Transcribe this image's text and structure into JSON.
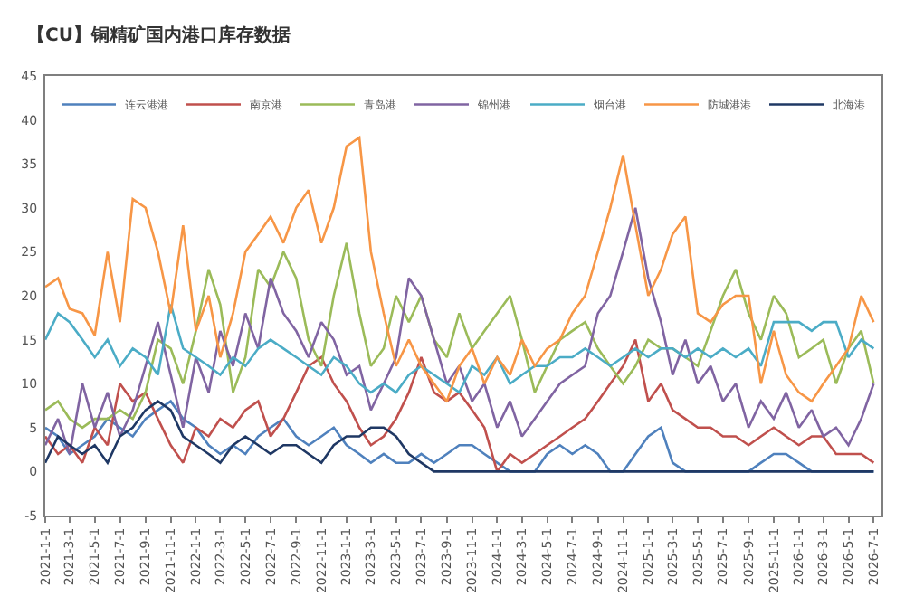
{
  "chart_data": {
    "type": "line",
    "title": "【CU】铜精矿国内港口库存数据",
    "x": [
      "2021-01",
      "2021-02",
      "2021-03",
      "2021-04",
      "2021-05",
      "2021-06",
      "2021-07",
      "2021-08",
      "2021-09",
      "2021-10",
      "2021-11",
      "2021-12",
      "2022-01",
      "2022-02",
      "2022-03",
      "2022-04",
      "2022-05",
      "2022-06",
      "2022-07",
      "2022-08",
      "2022-09",
      "2022-10",
      "2022-11",
      "2022-12",
      "2023-01",
      "2023-02",
      "2023-03",
      "2023-04",
      "2023-05",
      "2023-06",
      "2023-07",
      "2023-08",
      "2023-09",
      "2023-10",
      "2023-11",
      "2023-12",
      "2024-01",
      "2024-02",
      "2024-03",
      "2024-04",
      "2024-05",
      "2024-06",
      "2024-07",
      "2024-08",
      "2024-09",
      "2024-10",
      "2024-11",
      "2024-12",
      "2025-01",
      "2025-02",
      "2025-03",
      "2025-04",
      "2025-05",
      "2025-06",
      "2025-07",
      "2025-08",
      "2025-09",
      "2025-10",
      "2025-11",
      "2025-12",
      "2026-01",
      "2026-02",
      "2026-03",
      "2026-04",
      "2026-05",
      "2026-06",
      "2026-07"
    ],
    "series": [
      {
        "name": "连云港港",
        "color": "#4f81bd",
        "values": [
          5,
          4,
          2,
          3,
          4,
          6,
          5,
          4,
          6,
          7,
          8,
          6,
          5,
          3,
          2,
          3,
          2,
          4,
          5,
          6,
          4,
          3,
          4,
          5,
          3,
          2,
          1,
          2,
          1,
          1,
          2,
          1,
          2,
          3,
          3,
          2,
          1,
          0,
          0,
          0,
          2,
          3,
          2,
          3,
          2,
          0,
          0,
          2,
          4,
          5,
          1,
          0,
          0,
          0,
          0,
          0,
          0,
          1,
          2,
          2,
          1,
          0,
          0,
          0,
          0,
          0,
          0
        ]
      },
      {
        "name": "南京港",
        "color": "#c0504d",
        "values": [
          4,
          2,
          3,
          1,
          5,
          3,
          10,
          8,
          9,
          6,
          3,
          1,
          5,
          4,
          6,
          5,
          7,
          8,
          4,
          6,
          9,
          12,
          13,
          10,
          8,
          5,
          3,
          4,
          6,
          9,
          13,
          9,
          8,
          9,
          7,
          5,
          0,
          2,
          1,
          2,
          3,
          4,
          5,
          6,
          8,
          10,
          12,
          15,
          8,
          10,
          7,
          6,
          5,
          5,
          4,
          4,
          3,
          4,
          5,
          4,
          3,
          4,
          4,
          2,
          2,
          2,
          1
        ]
      },
      {
        "name": "青岛港",
        "color": "#9bbb59",
        "values": [
          7,
          8,
          6,
          5,
          6,
          6,
          7,
          6,
          9,
          15,
          14,
          10,
          16,
          23,
          19,
          9,
          13,
          23,
          21,
          25,
          22,
          15,
          12,
          20,
          26,
          18,
          12,
          14,
          20,
          17,
          20,
          15,
          13,
          18,
          14,
          16,
          18,
          20,
          15,
          9,
          12,
          15,
          16,
          17,
          14,
          12,
          10,
          12,
          15,
          14,
          14,
          13,
          12,
          16,
          20,
          23,
          18,
          15,
          20,
          18,
          13,
          14,
          15,
          10,
          14,
          16,
          10
        ]
      },
      {
        "name": "锦州港",
        "color": "#8064a2",
        "values": [
          3,
          6,
          2,
          10,
          5,
          9,
          4,
          7,
          12,
          17,
          11,
          5,
          13,
          9,
          16,
          12,
          18,
          14,
          22,
          18,
          16,
          13,
          17,
          15,
          11,
          12,
          7,
          10,
          13,
          22,
          20,
          15,
          10,
          12,
          8,
          10,
          5,
          8,
          4,
          6,
          8,
          10,
          11,
          12,
          18,
          20,
          25,
          30,
          22,
          17,
          11,
          15,
          10,
          12,
          8,
          10,
          5,
          8,
          6,
          9,
          5,
          7,
          4,
          5,
          3,
          6,
          10
        ]
      },
      {
        "name": "烟台港",
        "color": "#4bacc6",
        "values": [
          15,
          18,
          17,
          15,
          13,
          15,
          12,
          14,
          13,
          11,
          19,
          14,
          13,
          12,
          11,
          13,
          12,
          14,
          15,
          14,
          13,
          12,
          11,
          13,
          12,
          10,
          9,
          10,
          9,
          11,
          12,
          11,
          10,
          9,
          12,
          11,
          13,
          10,
          11,
          12,
          12,
          13,
          13,
          14,
          13,
          12,
          13,
          14,
          13,
          14,
          14,
          13,
          14,
          13,
          14,
          13,
          14,
          12,
          17,
          17,
          17,
          16,
          17,
          17,
          13,
          15,
          14
        ]
      },
      {
        "name": "防城港港",
        "color": "#f79646",
        "values": [
          21,
          22,
          18.5,
          18,
          15.5,
          25,
          17,
          31,
          30,
          25,
          18,
          28,
          16,
          20,
          13,
          18,
          25,
          27,
          29,
          26,
          30,
          32,
          26,
          30,
          37,
          38,
          25,
          18,
          12,
          15,
          12,
          10,
          8,
          12,
          14,
          10,
          13,
          11,
          15,
          12,
          14,
          15,
          18,
          20,
          25,
          30,
          36,
          28,
          20,
          23,
          27,
          29,
          18,
          17,
          19,
          20,
          20,
          10,
          16,
          11,
          9,
          8,
          10,
          12,
          14,
          20,
          17
        ]
      },
      {
        "name": "北海港",
        "color": "#1f3864",
        "values": [
          1,
          4,
          3,
          2,
          3,
          1,
          4,
          5,
          7,
          8,
          7,
          4,
          3,
          2,
          1,
          3,
          4,
          3,
          2,
          3,
          3,
          2,
          1,
          3,
          4,
          4,
          5,
          5,
          4,
          2,
          1,
          0,
          0,
          0,
          0,
          0,
          0,
          0,
          0,
          0,
          0,
          0,
          0,
          0,
          0,
          0,
          0,
          0,
          0,
          0,
          0,
          0,
          0,
          0,
          0,
          0,
          0,
          0,
          0,
          0,
          0,
          0,
          0,
          0,
          0,
          0,
          0
        ]
      }
    ],
    "xlim": [
      "2021-01-01",
      "2026-07-20"
    ],
    "xticks": [
      {
        "value": "2021-01-01",
        "label": "2021-1-1"
      },
      {
        "value": "2021-03-01",
        "label": "2021-3-1"
      },
      {
        "value": "2021-05-01",
        "label": "2021-5-1"
      },
      {
        "value": "2021-07-01",
        "label": "2021-7-1"
      },
      {
        "value": "2021-09-01",
        "label": "2021-9-1"
      },
      {
        "value": "2021-11-01",
        "label": "2021-11-1"
      },
      {
        "value": "2022-01-01",
        "label": "2022-1-1"
      },
      {
        "value": "2022-03-01",
        "label": "2022-3-1"
      },
      {
        "value": "2022-05-01",
        "label": "2022-5-1"
      },
      {
        "value": "2022-07-01",
        "label": "2022-7-1"
      },
      {
        "value": "2022-09-01",
        "label": "2022-9-1"
      },
      {
        "value": "2022-11-01",
        "label": "2022-11-1"
      },
      {
        "value": "2023-01-01",
        "label": "2023-1-1"
      },
      {
        "value": "2023-03-01",
        "label": "2023-3-1"
      },
      {
        "value": "2023-05-01",
        "label": "2023-5-1"
      },
      {
        "value": "2023-07-01",
        "label": "2023-7-1"
      },
      {
        "value": "2023-09-01",
        "label": "2023-9-1"
      },
      {
        "value": "2023-11-01",
        "label": "2023-11-1"
      },
      {
        "value": "2024-01-01",
        "label": "2024-1-1"
      },
      {
        "value": "2024-03-01",
        "label": "2024-3-1"
      },
      {
        "value": "2024-05-01",
        "label": "2024-5-1"
      },
      {
        "value": "2024-07-01",
        "label": "2024-7-1"
      },
      {
        "value": "2024-09-01",
        "label": "2024-9-1"
      },
      {
        "value": "2024-11-01",
        "label": "2024-11-1"
      },
      {
        "value": "2025-01-01",
        "label": "2025-1-1"
      },
      {
        "value": "2025-03-01",
        "label": "2025-3-1"
      },
      {
        "value": "2025-05-01",
        "label": "2025-5-1"
      },
      {
        "value": "2025-07-01",
        "label": "2025-7-1"
      },
      {
        "value": "2025-09-01",
        "label": "2025-9-1"
      },
      {
        "value": "2025-11-01",
        "label": "2025-11-1"
      },
      {
        "value": "2026-01-01",
        "label": "2026-1-1"
      },
      {
        "value": "2026-03-01",
        "label": "2026-3-1"
      },
      {
        "value": "2026-05-01",
        "label": "2026-5-1"
      },
      {
        "value": "2026-07-01",
        "label": "2026-7-1"
      }
    ],
    "ylim": [
      -5,
      45
    ],
    "yticks": [
      -5,
      0,
      5,
      10,
      15,
      20,
      25,
      30,
      35,
      40,
      45
    ],
    "grid": false,
    "legend": "top",
    "marker": "none",
    "line_style": "solid"
  }
}
